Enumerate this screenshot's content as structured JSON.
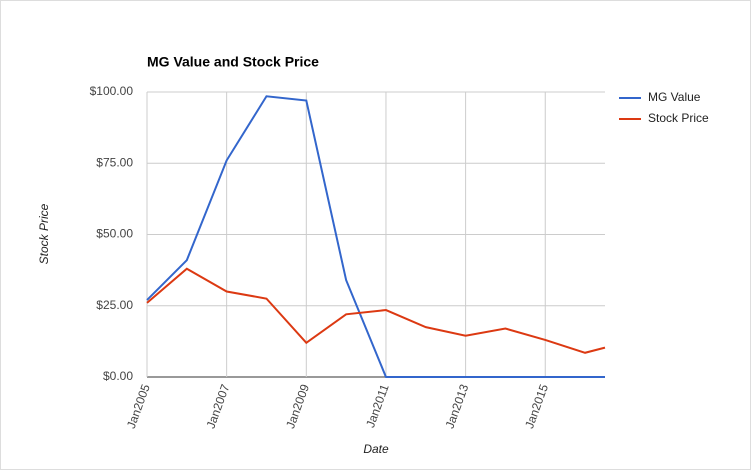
{
  "chart_data": {
    "type": "line",
    "title": "MG Value and Stock Price",
    "x_label": "Date",
    "y_label": "Stock Price",
    "x": [
      "2005-01",
      "2006-01",
      "2007-01",
      "2008-01",
      "2009-01",
      "2010-01",
      "2011-01",
      "2012-01",
      "2013-01",
      "2014-01",
      "2015-01",
      "2016-01",
      "2016-07"
    ],
    "series": [
      {
        "name": "MG Value",
        "color": "#3366cc",
        "values": [
          27,
          41,
          76,
          98.5,
          97,
          34,
          0,
          0,
          0,
          0,
          0,
          0,
          0
        ]
      },
      {
        "name": "Stock Price",
        "color": "#dc3912",
        "values": [
          26,
          38,
          30,
          27.5,
          12,
          22,
          23.5,
          17.5,
          14.5,
          17,
          13,
          8.5,
          10.3
        ]
      }
    ],
    "xlim": [
      "2005-01",
      "2016-07"
    ],
    "xticks": [
      {
        "value": "2005-01",
        "label": "Jan2005"
      },
      {
        "value": "2007-01",
        "label": "Jan2007"
      },
      {
        "value": "2009-01",
        "label": "Jan2009"
      },
      {
        "value": "2011-01",
        "label": "Jan2011"
      },
      {
        "value": "2013-01",
        "label": "Jan2013"
      },
      {
        "value": "2015-01",
        "label": "Jan2015"
      }
    ],
    "ylim": [
      0,
      100
    ],
    "yticks": [
      {
        "value": 0,
        "label": "$0.00"
      },
      {
        "value": 25,
        "label": "$25.00"
      },
      {
        "value": 50,
        "label": "$50.00"
      },
      {
        "value": 75,
        "label": "$75.00"
      },
      {
        "value": 100,
        "label": "$100.00"
      }
    ],
    "grid": true,
    "legend": "right"
  }
}
